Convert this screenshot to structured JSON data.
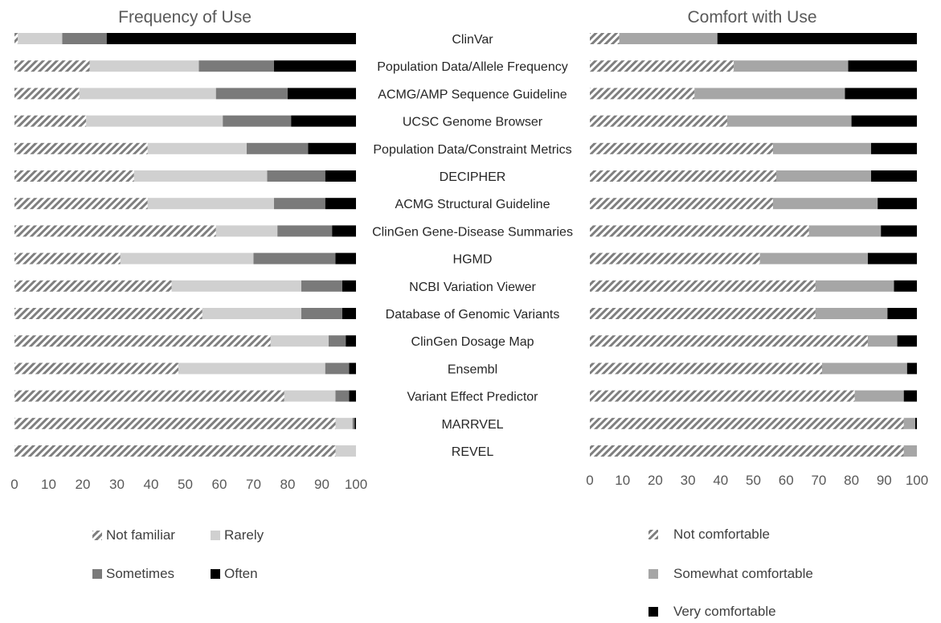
{
  "chart_data": [
    {
      "type": "bar",
      "orientation": "horizontal",
      "stacked": true,
      "title": "Frequency of Use",
      "categories": [
        "ClinVar",
        "Population Data/Allele Frequency",
        "ACMG/AMP Sequence Guideline",
        "UCSC Genome Browser",
        "Population Data/Constraint Metrics",
        "DECIPHER",
        "ACMG Structural Guideline",
        "ClinGen Gene-Disease Summaries",
        "HGMD",
        "NCBI Variation Viewer",
        "Database of Genomic Variants",
        "ClinGen Dosage Map",
        "Ensembl",
        "Variant Effect Predictor",
        "MARRVEL",
        "REVEL"
      ],
      "series": [
        {
          "name": "Not familiar",
          "pattern": "hatch",
          "color": "#7f7f7f",
          "values": [
            1,
            22,
            19,
            21,
            39,
            35,
            39,
            59,
            31,
            46,
            55,
            75,
            48,
            79,
            94,
            94
          ]
        },
        {
          "name": "Rarely",
          "color": "#d0d0d0",
          "values": [
            13,
            32,
            40,
            40,
            29,
            39,
            37,
            18,
            39,
            38,
            29,
            17,
            43,
            15,
            5,
            6
          ]
        },
        {
          "name": "Sometimes",
          "color": "#7a7a7a",
          "values": [
            13,
            22,
            21,
            20,
            18,
            17,
            15,
            16,
            24,
            12,
            12,
            5,
            7,
            4,
            0.6,
            0
          ]
        },
        {
          "name": "Often",
          "color": "#000000",
          "values": [
            73,
            24,
            20,
            19,
            14,
            9,
            9,
            7,
            6,
            4,
            4,
            3,
            2,
            2,
            0.4,
            0
          ]
        }
      ],
      "xlim": [
        0,
        100
      ],
      "xticks": [
        0,
        10,
        20,
        30,
        40,
        50,
        60,
        70,
        80,
        90,
        100
      ],
      "legend": "bottom"
    },
    {
      "type": "bar",
      "orientation": "horizontal",
      "stacked": true,
      "title": "Comfort with Use",
      "categories": [
        "ClinVar",
        "Population Data/Allele Frequency",
        "ACMG/AMP Sequence Guideline",
        "UCSC Genome Browser",
        "Population Data/Constraint Metrics",
        "DECIPHER",
        "ACMG Structural Guideline",
        "ClinGen Gene-Disease Summaries",
        "HGMD",
        "NCBI Variation Viewer",
        "Database of Genomic Variants",
        "ClinGen Dosage Map",
        "Ensembl",
        "Variant Effect Predictor",
        "MARRVEL",
        "REVEL"
      ],
      "series": [
        {
          "name": "Not comfortable",
          "pattern": "hatch",
          "color": "#7f7f7f",
          "values": [
            9,
            44,
            32,
            42,
            56,
            57,
            56,
            67,
            52,
            69,
            69,
            85,
            71,
            81,
            96,
            96
          ]
        },
        {
          "name": "Somewhat comfortable",
          "color": "#a6a6a6",
          "values": [
            30,
            35,
            46,
            38,
            30,
            29,
            32,
            22,
            33,
            24,
            22,
            9,
            26,
            15,
            3.5,
            4
          ]
        },
        {
          "name": "Very comfortable",
          "color": "#000000",
          "values": [
            61,
            21,
            22,
            20,
            14,
            14,
            12,
            11,
            15,
            7,
            9,
            6,
            3,
            4,
            0.5,
            0
          ]
        }
      ],
      "xlim": [
        0,
        100
      ],
      "xticks": [
        0,
        10,
        20,
        30,
        40,
        50,
        60,
        70,
        80,
        90,
        100
      ],
      "legend": "bottom"
    }
  ]
}
